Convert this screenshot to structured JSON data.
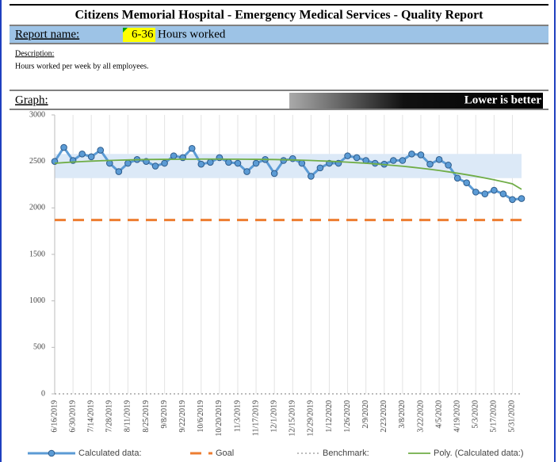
{
  "header": {
    "title": "Citizens Memorial Hospital - Emergency Medical Services - Quality Report",
    "report_label": "Report name:",
    "report_code": "6-36",
    "report_name": "Hours worked",
    "description_label": "Description:",
    "description": "Hours worked per week by all employees.",
    "graph_label": "Graph:",
    "note": "Lower is better"
  },
  "chart_data": {
    "type": "line",
    "categories": [
      "6/16/2019",
      null,
      "6/30/2019",
      null,
      "7/14/2019",
      null,
      "7/28/2019",
      null,
      "8/11/2019",
      null,
      "8/25/2019",
      null,
      "9/8/2019",
      null,
      "9/22/2019",
      null,
      "10/6/2019",
      null,
      "10/20/2019",
      null,
      "11/3/2019",
      null,
      "11/17/2019",
      null,
      "12/1/2019",
      null,
      "12/15/2019",
      null,
      "12/29/2019",
      null,
      "1/12/2020",
      null,
      "1/26/2020",
      null,
      "2/9/2020",
      null,
      "2/23/2020",
      null,
      "3/8/2020",
      null,
      "3/22/2020",
      null,
      "4/5/2020",
      null,
      "4/19/2020",
      null,
      "5/3/2020",
      null,
      "5/17/2020",
      null,
      "5/31/2020",
      null
    ],
    "series": [
      {
        "name": "Calculated data:",
        "color": "#5b9bd5",
        "style": "marker",
        "values": [
          2500,
          2650,
          2510,
          2580,
          2550,
          2620,
          2480,
          2390,
          2480,
          2520,
          2500,
          2450,
          2480,
          2560,
          2540,
          2640,
          2470,
          2490,
          2540,
          2490,
          2480,
          2390,
          2480,
          2520,
          2370,
          2510,
          2530,
          2480,
          2340,
          2430,
          2480,
          2480,
          2560,
          2540,
          2510,
          2480,
          2470,
          2510,
          2510,
          2580,
          2570,
          2470,
          2520,
          2460,
          2320,
          2270,
          2170,
          2150,
          2190,
          2150,
          2090,
          2100
        ]
      },
      {
        "name": "Goal",
        "color": "#ed7d31",
        "style": "dashed",
        "values": [
          1870,
          1870,
          1870,
          1870,
          1870,
          1870,
          1870,
          1870,
          1870,
          1870,
          1870,
          1870,
          1870,
          1870,
          1870,
          1870,
          1870,
          1870,
          1870,
          1870,
          1870,
          1870,
          1870,
          1870,
          1870,
          1870,
          1870,
          1870,
          1870,
          1870,
          1870,
          1870,
          1870,
          1870,
          1870,
          1870,
          1870,
          1870,
          1870,
          1870,
          1870,
          1870,
          1870,
          1870,
          1870,
          1870,
          1870,
          1870,
          1870,
          1870,
          1870,
          1870
        ]
      },
      {
        "name": "Benchmark:",
        "color": "#a5a5a5",
        "style": "dotted",
        "values": [
          0,
          0,
          0,
          0,
          0,
          0,
          0,
          0,
          0,
          0,
          0,
          0,
          0,
          0,
          0,
          0,
          0,
          0,
          0,
          0,
          0,
          0,
          0,
          0,
          0,
          0,
          0,
          0,
          0,
          0,
          0,
          0,
          0,
          0,
          0,
          0,
          0,
          0,
          0,
          0,
          0,
          0,
          0,
          0,
          0,
          0,
          0,
          0,
          0,
          0,
          0,
          0
        ]
      },
      {
        "name": "Poly. (Calculated data:)",
        "color": "#70ad47",
        "style": "solid",
        "values": [
          2480,
          2487,
          2493,
          2498,
          2503,
          2507,
          2510,
          2513,
          2516,
          2518,
          2520,
          2521,
          2522,
          2523,
          2524,
          2524,
          2525,
          2525,
          2525,
          2524,
          2524,
          2523,
          2522,
          2521,
          2520,
          2518,
          2516,
          2513,
          2510,
          2506,
          2502,
          2497,
          2492,
          2486,
          2480,
          2473,
          2465,
          2457,
          2448,
          2438,
          2427,
          2415,
          2402,
          2388,
          2373,
          2357,
          2340,
          2321,
          2302,
          2281,
          2259,
          2200
        ]
      }
    ],
    "shaded_range": [
      2320,
      2580
    ],
    "band_color": "#dce9f7",
    "ylim": [
      0,
      3000
    ],
    "yticks": [
      0,
      500,
      1000,
      1500,
      2000,
      2500,
      3000
    ],
    "grid": "x",
    "legend": "bottom"
  }
}
